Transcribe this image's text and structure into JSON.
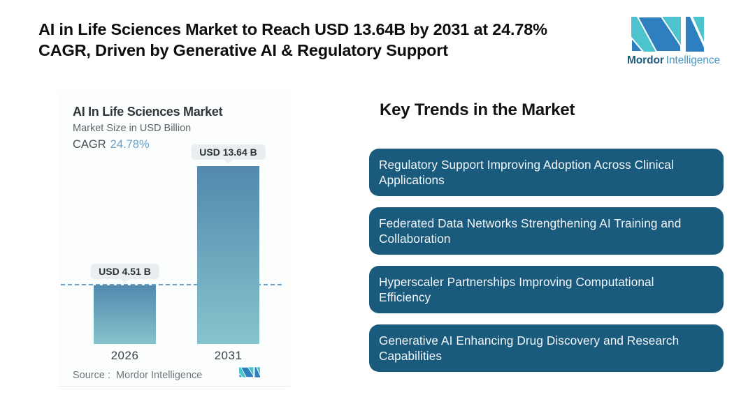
{
  "header": {
    "title_lines": [
      "AI in Life Sciences Market to Reach USD 13.64B by 2031 at 24.78%",
      "CAGR, Driven by Generative AI & Regulatory Support"
    ]
  },
  "brand": {
    "name_primary": "Mordor",
    "name_secondary": "Intelligence",
    "colors": {
      "teal": "#4cc3cd",
      "blue": "#2d7fc0",
      "name_primary_color": "#1e5a7d",
      "name_secondary_color": "#4697c5"
    }
  },
  "chart": {
    "title": "AI In Life Sciences Market",
    "subtitle": "Market Size in USD Billion",
    "cagr_label": "CAGR",
    "cagr_value": "24.78%",
    "source": "Source :  Mordor Intelligence"
  },
  "chart_data": {
    "type": "bar",
    "title": "AI In Life Sciences Market",
    "ylabel": "Market Size in USD Billion",
    "categories": [
      "2026",
      "2031"
    ],
    "values": [
      4.51,
      13.64
    ],
    "value_labels": [
      "USD 4.51 B",
      "USD 13.64 B"
    ],
    "cagr_percent": 24.78,
    "ylim": [
      0,
      13.64
    ],
    "reference_line_y": 4.51,
    "grid": false,
    "legend": false,
    "bar_gradient_top": "#5289ae",
    "bar_gradient_bottom": "#85c4cc",
    "reference_line_color": "#66a1c9"
  },
  "trends": {
    "heading": "Key Trends in the Market",
    "box_color": "#1a5a7d",
    "items": [
      "Regulatory Support Improving Adoption Across Clinical Applications",
      "Federated Data Networks Strengthening AI Training and Collaboration",
      "Hyperscaler Partnerships Improving Computational Efficiency",
      "Generative AI Enhancing Drug Discovery and Research Capabilities"
    ]
  }
}
